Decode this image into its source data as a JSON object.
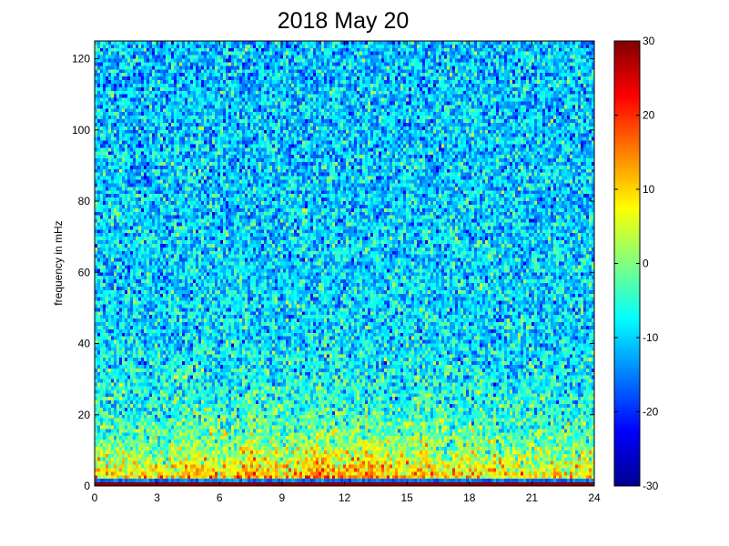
{
  "chart_data": {
    "type": "heatmap",
    "title": "2018 May 20",
    "xlabel": "",
    "ylabel": "frequency in mHz",
    "xlim": [
      0,
      24
    ],
    "ylim": [
      0,
      125
    ],
    "x_ticks": [
      "0",
      "3",
      "6",
      "9",
      "12",
      "15",
      "18",
      "21",
      "24"
    ],
    "y_ticks": [
      "0",
      "20",
      "40",
      "60",
      "80",
      "100",
      "120"
    ],
    "colorbar": {
      "colormap": "jet",
      "range": [
        -30,
        30
      ],
      "ticks": [
        "30",
        "20",
        "10",
        "0",
        "-10",
        "-20",
        "-30"
      ]
    },
    "grid": false
  }
}
